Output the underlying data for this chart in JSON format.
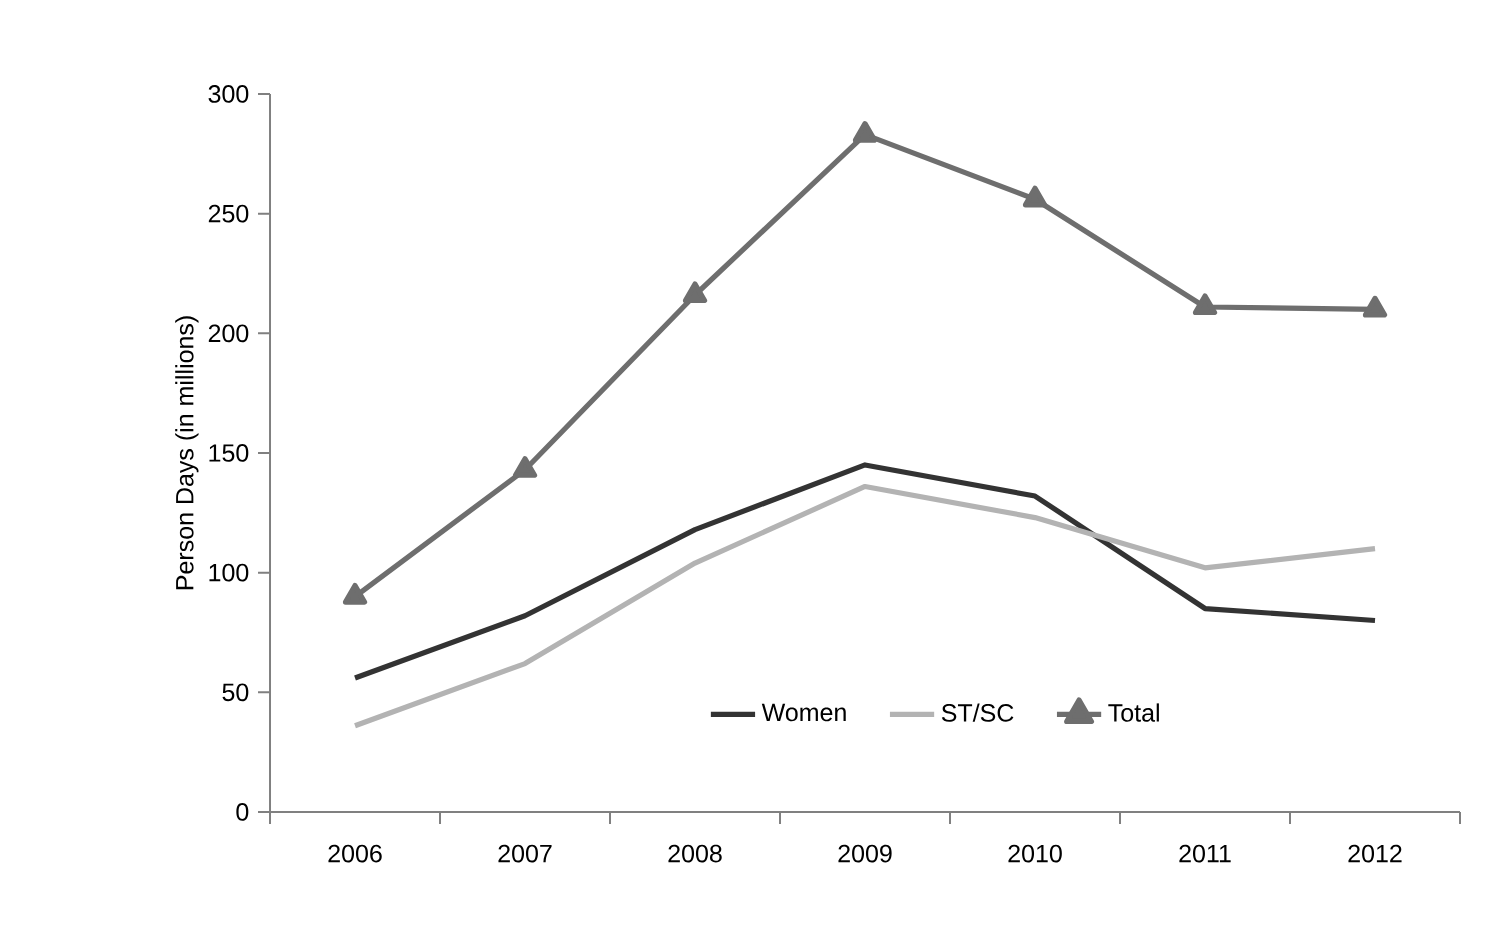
{
  "chart_data": {
    "type": "line",
    "ylabel": "Person Days (in millions)",
    "categories": [
      "2006",
      "2007",
      "2008",
      "2009",
      "2010",
      "2011",
      "2012"
    ],
    "series": [
      {
        "name": "Women",
        "color": "#333333",
        "values": [
          56,
          82,
          118,
          145,
          132,
          85,
          80
        ]
      },
      {
        "name": "ST/SC",
        "color": "#b3b3b3",
        "values": [
          36,
          62,
          104,
          136,
          123,
          102,
          110
        ]
      },
      {
        "name": "Total",
        "color": "#6e6e6e",
        "values": [
          90,
          143,
          216,
          283,
          256,
          211,
          210
        ],
        "marker": "triangle"
      }
    ],
    "ylim": [
      0,
      300
    ],
    "yticks": [
      0,
      50,
      100,
      150,
      200,
      250,
      300
    ],
    "legend": "bottom"
  }
}
